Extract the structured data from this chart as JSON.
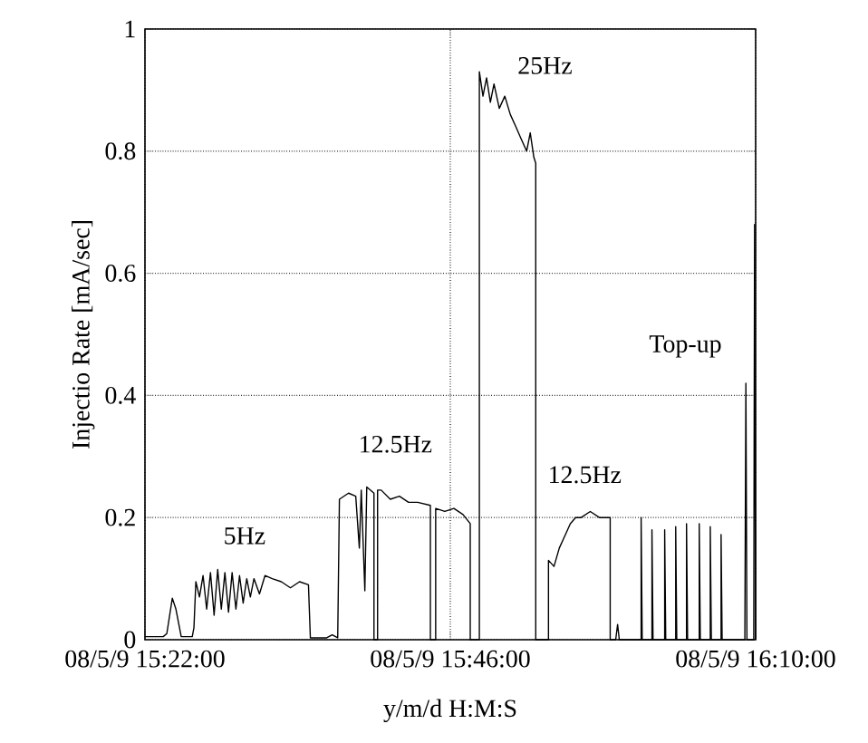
{
  "chart_data": {
    "type": "line",
    "xlabel": "y/m/d H:M:S",
    "ylabel": "Injectio Rate [mA/sec]",
    "xlim": [
      "--05-09T15:22:00",
      "--05-09T16:10:00"
    ],
    "ylim": [
      0,
      1
    ],
    "xticks": [
      {
        "value": "--05-09T15:22:00",
        "label": "08/5/9 15:22:00"
      },
      {
        "value": "--05-09T15:46:00",
        "label": "08/5/9 15:46:00"
      },
      {
        "value": "--05-09T16:10:00",
        "label": "08/5/9 16:10:00"
      }
    ],
    "yticks": [
      0,
      0.2,
      0.4,
      0.6,
      0.8,
      1
    ],
    "grid": true,
    "series": [
      {
        "color": "#000000",
        "x": [
          "--05-09T15:22:00",
          "--05-09T15:23:26",
          "--05-09T15:23:43",
          "--05-09T15:24:09",
          "--05-09T15:24:26",
          "--05-09T15:24:51",
          "--05-09T15:25:43",
          "--05-09T15:25:51",
          "--05-09T15:26:00",
          "--05-09T15:26:17",
          "--05-09T15:26:34",
          "--05-09T15:26:51",
          "--05-09T15:27:09",
          "--05-09T15:27:26",
          "--05-09T15:27:43",
          "--05-09T15:28:00",
          "--05-09T15:28:17",
          "--05-09T15:28:34",
          "--05-09T15:28:51",
          "--05-09T15:29:09",
          "--05-09T15:29:26",
          "--05-09T15:29:43",
          "--05-09T15:30:00",
          "--05-09T15:30:17",
          "--05-09T15:30:34",
          "--05-09T15:31:00",
          "--05-09T15:31:26",
          "--05-09T15:32:00",
          "--05-09T15:32:43",
          "--05-09T15:33:26",
          "--05-09T15:34:09",
          "--05-09T15:34:51",
          "--05-09T15:35:00",
          "--05-09T15:36:17",
          "--05-09T15:36:43",
          "--05-09T15:37:09",
          "--05-09T15:37:17",
          "--05-09T15:38:00",
          "--05-09T15:38:34",
          "--05-09T15:38:51",
          "--05-09T15:39:00",
          "--05-09T15:39:17",
          "--05-09T15:39:26",
          "--05-09T15:40:00",
          "--05-09T15:40:00",
          "--05-09T15:40:17",
          "--05-09T15:40:17",
          "--05-09T15:40:34",
          "--05-09T15:41:17",
          "--05-09T15:42:00",
          "--05-09T15:42:43",
          "--05-09T15:43:26",
          "--05-09T15:44:26",
          "--05-09T15:44:26",
          "--05-09T15:44:51",
          "--05-09T15:44:51",
          "--05-09T15:45:34",
          "--05-09T15:46:17",
          "--05-09T15:47:00",
          "--05-09T15:47:34",
          "--05-09T15:47:34",
          "--05-09T15:48:17",
          "--05-09T15:48:17",
          "--05-09T15:48:34",
          "--05-09T15:48:51",
          "--05-09T15:49:09",
          "--05-09T15:49:26",
          "--05-09T15:49:51",
          "--05-09T15:50:17",
          "--05-09T15:50:43",
          "--05-09T15:51:09",
          "--05-09T15:51:34",
          "--05-09T15:52:00",
          "--05-09T15:52:17",
          "--05-09T15:52:34",
          "--05-09T15:52:43",
          "--05-09T15:52:43",
          "--05-09T15:53:43",
          "--05-09T15:53:43",
          "--05-09T15:54:09",
          "--05-09T15:54:34",
          "--05-09T15:55:00",
          "--05-09T15:55:26",
          "--05-09T15:55:51",
          "--05-09T15:56:17",
          "--05-09T15:57:00",
          "--05-09T15:57:43",
          "--05-09T15:58:34",
          "--05-09T15:58:34",
          "--05-09T15:59:00",
          "--05-09T15:59:09",
          "--05-09T15:59:17",
          "--05-09T16:01:00",
          "--05-09T16:01:00",
          "--05-09T16:01:05",
          "--05-09T16:01:51",
          "--05-09T16:01:51",
          "--05-09T16:01:56",
          "--05-09T16:02:51",
          "--05-09T16:02:51",
          "--05-09T16:02:56",
          "--05-09T16:03:43",
          "--05-09T16:03:43",
          "--05-09T16:03:48",
          "--05-09T16:04:34",
          "--05-09T16:04:34",
          "--05-09T16:04:39",
          "--05-09T16:05:34",
          "--05-09T16:05:34",
          "--05-09T16:05:39",
          "--05-09T16:06:26",
          "--05-09T16:06:26",
          "--05-09T16:06:31",
          "--05-09T16:07:17",
          "--05-09T16:07:17",
          "--05-09T16:07:22",
          "--05-09T16:09:09",
          "--05-09T16:09:14",
          "--05-09T16:09:19",
          "--05-09T16:09:51",
          "--05-09T16:09:55",
          "--05-09T16:10:00"
        ],
        "values": [
          0.005,
          0.005,
          0.01,
          0.068,
          0.05,
          0.005,
          0.005,
          0.02,
          0.095,
          0.07,
          0.105,
          0.05,
          0.11,
          0.04,
          0.115,
          0.05,
          0.11,
          0.045,
          0.11,
          0.05,
          0.105,
          0.06,
          0.1,
          0.07,
          0.1,
          0.075,
          0.105,
          0.1,
          0.095,
          0.085,
          0.095,
          0.09,
          0.003,
          0.003,
          0.008,
          0.003,
          0.23,
          0.24,
          0.235,
          0.15,
          0.245,
          0.08,
          0.25,
          0.24,
          0,
          0,
          0.245,
          0.245,
          0.23,
          0.235,
          0.225,
          0.225,
          0.22,
          0,
          0,
          0.215,
          0.21,
          0.215,
          0.205,
          0.19,
          0,
          0,
          0.93,
          0.89,
          0.92,
          0.88,
          0.91,
          0.87,
          0.89,
          0.86,
          0.84,
          0.82,
          0.8,
          0.83,
          0.79,
          0.78,
          0,
          0,
          0.13,
          0.12,
          0.15,
          0.17,
          0.19,
          0.2,
          0.2,
          0.21,
          0.2,
          0.2,
          0,
          0,
          0.025,
          0,
          0,
          0.2,
          0,
          0,
          0.18,
          0,
          0,
          0.18,
          0,
          0,
          0.185,
          0,
          0,
          0.19,
          0,
          0,
          0.19,
          0,
          0,
          0.185,
          0,
          0,
          0.172,
          0,
          0,
          0.42,
          0,
          0,
          0.68,
          0
        ]
      }
    ],
    "annotations": [
      "5Hz",
      "12.5Hz",
      "25Hz",
      "12.5Hz",
      "Top-up"
    ]
  }
}
